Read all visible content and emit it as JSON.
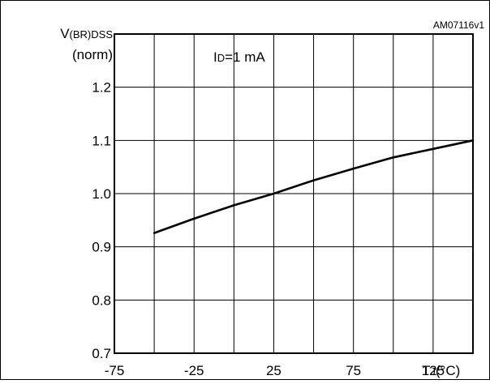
{
  "figure_id": "AM07116v1",
  "chart_data": {
    "type": "line",
    "title": "",
    "ylabel_main": "V",
    "ylabel_sub": "(BR)DSS",
    "ylabel_line2": "(norm)",
    "xlabel_main": "T",
    "xlabel_sub": "J",
    "xlabel_unit": "(°C)",
    "annotation": {
      "main": "I",
      "sub": "D",
      "rest": "=1 mA"
    },
    "xlim": [
      -75,
      150
    ],
    "ylim": [
      0.7,
      1.3
    ],
    "x_ticks": [
      -75,
      -50,
      -25,
      0,
      25,
      50,
      75,
      100,
      125,
      150
    ],
    "x_tick_labels": [
      "-75",
      "",
      "-25",
      "",
      "25",
      "",
      "75",
      "",
      "125",
      ""
    ],
    "y_ticks": [
      0.7,
      0.8,
      0.9,
      1.0,
      1.1,
      1.2,
      1.3
    ],
    "y_tick_labels": [
      "0.7",
      "0.8",
      "0.9",
      "1.0",
      "1.1",
      "1.2",
      ""
    ],
    "grid": true,
    "series": [
      {
        "x": [
          -50,
          -25,
          0,
          25,
          50,
          75,
          100,
          125,
          150
        ],
        "y": [
          0.926,
          0.953,
          0.978,
          1.0,
          1.025,
          1.047,
          1.068,
          1.084,
          1.1
        ]
      }
    ]
  }
}
